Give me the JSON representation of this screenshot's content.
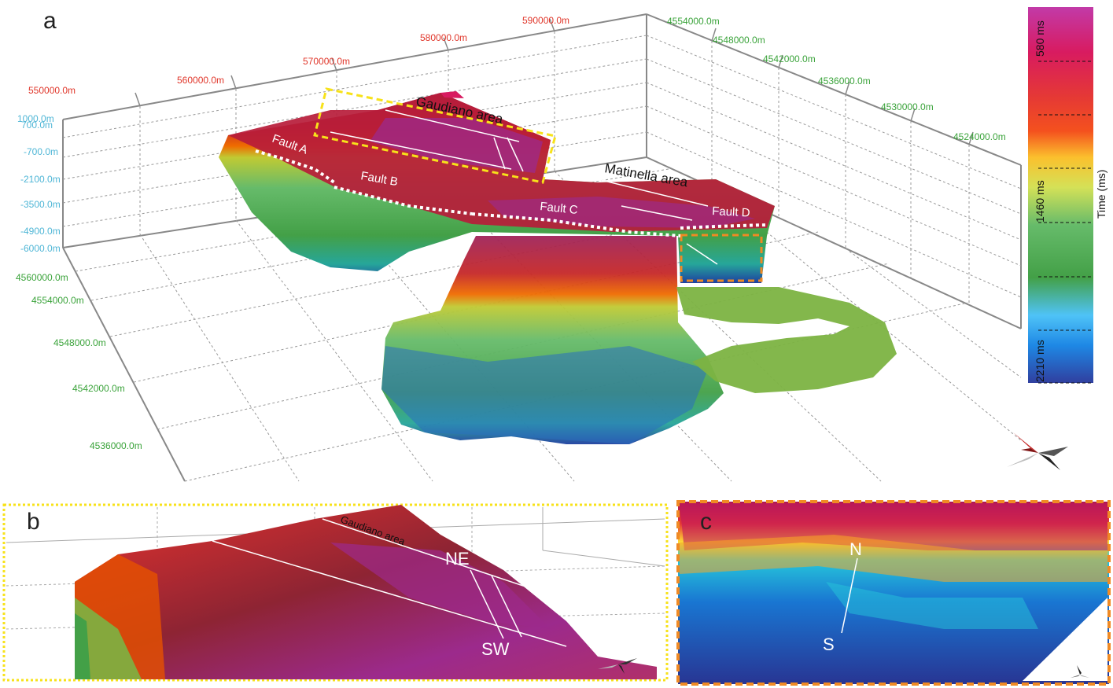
{
  "panels": {
    "a": {
      "letter": "a",
      "x_axis_ticks": [
        "550000.0m",
        "560000.0m",
        "570000.0m",
        "580000.0m",
        "590000.0m"
      ],
      "z_axis_ticks": [
        "1000.0m",
        "700.0m",
        "-700.0m",
        "-2100.0m",
        "-3500.0m",
        "-4900.0m",
        "-6000.0m"
      ],
      "y_axis_front_ticks": [
        "4560000.0m",
        "4554000.0m",
        "4548000.0m",
        "4542000.0m",
        "4536000.0m"
      ],
      "y_axis_back_ticks": [
        "4554000.0m",
        "4548000.0m",
        "4542000.0m",
        "4536000.0m",
        "4530000.0m",
        "4524000.0m"
      ],
      "area_labels": {
        "gaudiano": "Gaudiano area",
        "matinella": "Matinella area"
      },
      "fault_labels": [
        "Fault A",
        "Fault B",
        "Fault C",
        "Fault D"
      ]
    },
    "b": {
      "letter": "b",
      "area_label": "Gaudiano area",
      "dir_top": "NE",
      "dir_bottom": "SW"
    },
    "c": {
      "letter": "c",
      "dir_top": "N",
      "dir_bottom": "S"
    }
  },
  "colorbar": {
    "title": "Time (ms)",
    "ticks": [
      "580 ms",
      "1460 ms",
      "2210 ms"
    ],
    "stops": [
      "#c23aa8",
      "#d81b60",
      "#e53935",
      "#f4511e",
      "#fbc02d",
      "#d4e157",
      "#66bb6a",
      "#43a047",
      "#4fc3f7",
      "#1e88e5",
      "#3949ab",
      "#303f9f"
    ]
  },
  "highlight_colors": {
    "panel_b_frame": "#f7e21a",
    "panel_c_frame": "#f08a24",
    "fault_trace": "#ffffff"
  }
}
